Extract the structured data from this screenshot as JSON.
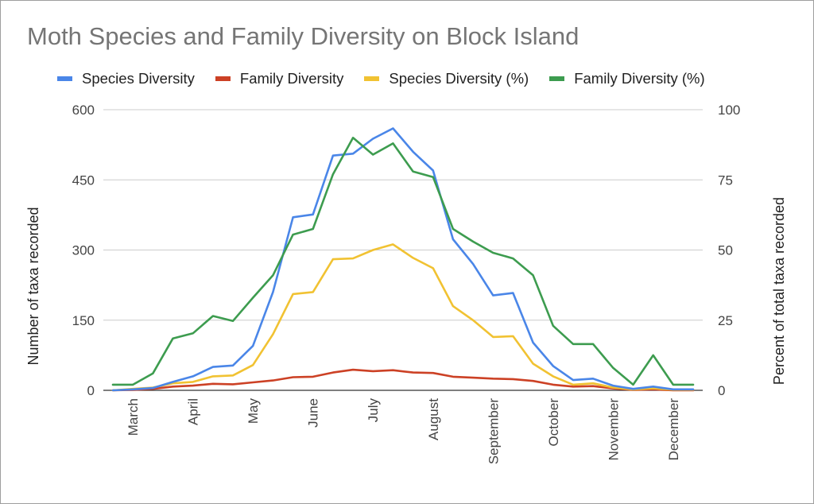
{
  "chart_data": {
    "type": "line",
    "title": "Moth Species and Family Diversity on Block Island",
    "ylabel": "Number of taxa recorded",
    "y2label": "Percent of total taxa recorded",
    "ylim": [
      0,
      600
    ],
    "y2lim": [
      0,
      100
    ],
    "yticks": [
      "0",
      "150",
      "300",
      "450",
      "600"
    ],
    "y2ticks": [
      "0",
      "25",
      "50",
      "75",
      "100"
    ],
    "xlabels": [
      "March",
      "April",
      "May",
      "June",
      "July",
      "August",
      "September",
      "October",
      "November",
      "December"
    ],
    "grid": true,
    "legend_position": "top",
    "series": [
      {
        "name": "Species Diversity",
        "axis": "left",
        "color": "#4a86e8",
        "values": [
          0,
          2,
          5,
          18,
          30,
          50,
          53,
          95,
          210,
          370,
          376,
          502,
          506,
          538,
          560,
          510,
          470,
          323,
          270,
          203,
          208,
          102,
          52,
          22,
          25,
          10,
          3,
          8,
          2,
          2
        ]
      },
      {
        "name": "Family Diversity",
        "axis": "left",
        "color": "#cc4125",
        "values": [
          0,
          1,
          3,
          8,
          10,
          14,
          13,
          17,
          21,
          28,
          29,
          38,
          44,
          41,
          43,
          38,
          37,
          29,
          27,
          25,
          24,
          20,
          12,
          8,
          9,
          4,
          1,
          2,
          0,
          0
        ]
      },
      {
        "name": "Species Diversity (%)",
        "axis": "right",
        "color": "#f1c232",
        "values": [
          0,
          0.5,
          1,
          2.5,
          3,
          5,
          5.3,
          9,
          20,
          34.3,
          35,
          46.7,
          47,
          50,
          52,
          47.2,
          43.5,
          30,
          25,
          19,
          19.3,
          9.5,
          5,
          2,
          2.5,
          1,
          0.3,
          0.7,
          0.2,
          0.2
        ]
      },
      {
        "name": "Family Diversity (%)",
        "axis": "right",
        "color": "#3d9c4f",
        "values": [
          2,
          2,
          6,
          18.5,
          20.3,
          26.5,
          24.7,
          33,
          41,
          55.5,
          57.5,
          77,
          90,
          84,
          88,
          78,
          76,
          57.5,
          53,
          49,
          47,
          41,
          23,
          16.5,
          16.5,
          8,
          2,
          12.5,
          2,
          2
        ]
      }
    ]
  }
}
